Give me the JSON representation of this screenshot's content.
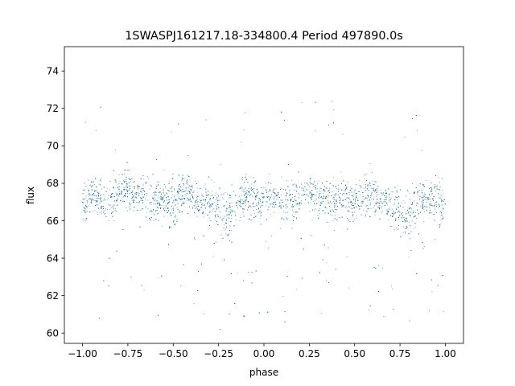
{
  "chart_data": {
    "type": "scatter",
    "title": "1SWASPJ161217.18-334800.4 Period 497890.0s",
    "xlabel": "phase",
    "ylabel": "flux",
    "xlim": [
      -1.1,
      1.1
    ],
    "ylim": [
      59.45,
      75.3
    ],
    "x_ticks": [
      -1.0,
      -0.75,
      -0.5,
      -0.25,
      0.0,
      0.25,
      0.5,
      0.75,
      1.0
    ],
    "x_tick_labels": [
      "−1.00",
      "−0.75",
      "−0.50",
      "−0.25",
      "0.00",
      "0.25",
      "0.50",
      "0.75",
      "1.00"
    ],
    "y_ticks": [
      60,
      62,
      64,
      66,
      68,
      70,
      72,
      74
    ],
    "y_tick_labels": [
      "60",
      "62",
      "64",
      "66",
      "68",
      "70",
      "72",
      "74"
    ],
    "grid": false,
    "legend": "none",
    "marker_color": "#1f77b4",
    "series": [
      {
        "phase": [
          -1.0,
          -0.95,
          -0.9,
          -0.85,
          -0.8,
          -0.75,
          -0.7,
          -0.65,
          -0.6,
          -0.55,
          -0.5,
          -0.45,
          -0.4,
          -0.35,
          -0.3,
          -0.25,
          -0.2,
          -0.15,
          -0.1,
          -0.05,
          0.0,
          0.05,
          0.1,
          0.15,
          0.2,
          0.25,
          0.3,
          0.35,
          0.4,
          0.45,
          0.5,
          0.55,
          0.6,
          0.65,
          0.7,
          0.75,
          0.8,
          0.85,
          0.9,
          0.95,
          1.0
        ],
        "flux_center": [
          67.0,
          67.3,
          67.1,
          66.9,
          67.5,
          67.8,
          67.2,
          67.4,
          67.0,
          67.1,
          66.9,
          67.6,
          67.3,
          67.0,
          66.9,
          66.7,
          66.2,
          66.9,
          67.4,
          67.1,
          67.2,
          67.3,
          67.1,
          66.9,
          67.5,
          67.7,
          67.2,
          67.4,
          67.1,
          67.2,
          66.9,
          67.5,
          67.3,
          67.0,
          66.9,
          66.6,
          66.3,
          67.0,
          67.3,
          67.1,
          66.8
        ],
        "flux_spread": [
          1.4,
          1.2,
          1.3,
          1.5,
          1.4,
          1.3,
          1.2,
          1.5,
          1.4,
          1.3,
          1.6,
          1.4,
          1.3,
          1.2,
          1.4,
          1.5,
          1.7,
          1.6,
          1.3,
          1.5,
          1.4,
          1.2,
          1.3,
          1.5,
          1.3,
          1.2,
          1.2,
          1.5,
          1.4,
          1.3,
          1.6,
          1.4,
          1.3,
          1.2,
          1.4,
          1.5,
          1.7,
          1.6,
          1.3,
          1.5,
          1.4
        ]
      }
    ]
  }
}
